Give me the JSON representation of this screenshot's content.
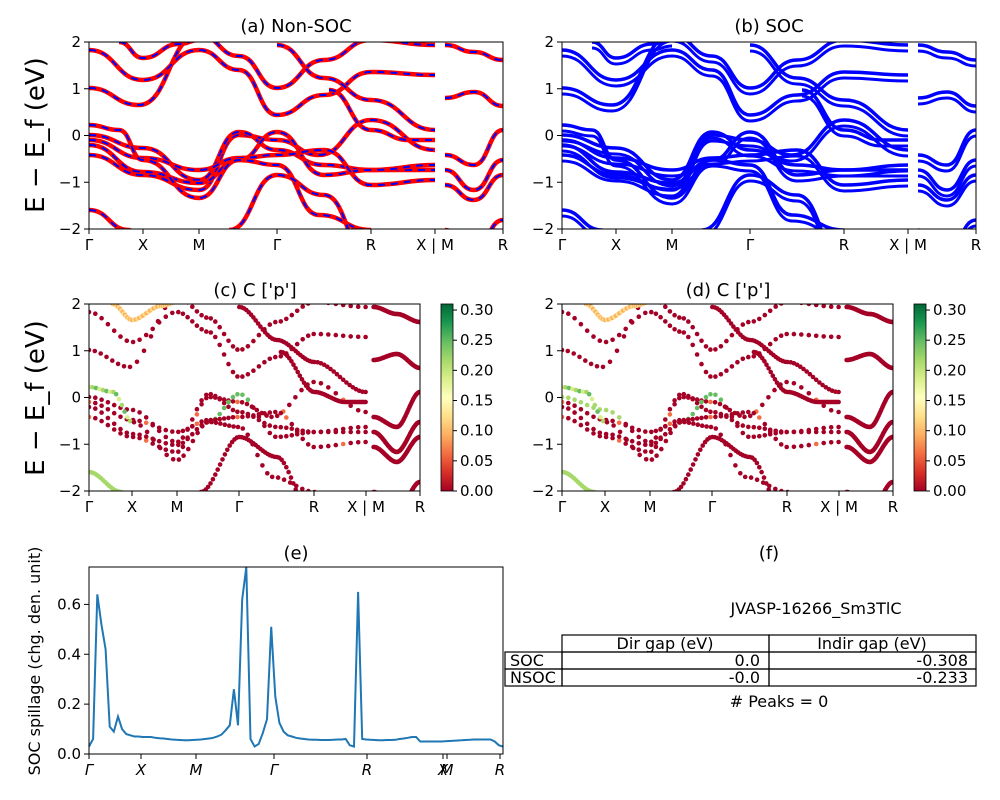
{
  "chart_data": [
    {
      "id": "a",
      "type": "line",
      "title": "(a) Non-SOC",
      "ylabel": "E − E_f (eV)",
      "ylim": [
        -2,
        2
      ],
      "yticks": [
        "2",
        "1",
        "0",
        "−1",
        "−2"
      ],
      "kpoint_labels": [
        "Γ",
        "X",
        "M",
        "Γ",
        "R",
        "X | M",
        "R"
      ],
      "series_colors": [
        "#ff0000",
        "#0000ff"
      ],
      "line_style": "red solid overlaid with blue dashes"
    },
    {
      "id": "b",
      "type": "line",
      "title": "(b) SOC",
      "ylim": [
        -2,
        2
      ],
      "yticks": [
        "2",
        "1",
        "0",
        "−1",
        "−2"
      ],
      "kpoint_labels": [
        "Γ",
        "X",
        "M",
        "Γ",
        "R",
        "X | M",
        "R"
      ],
      "series_colors": [
        "#0000ff"
      ]
    },
    {
      "id": "c",
      "type": "scatter",
      "title": "(c)  C ['p']",
      "ylabel": "E − E_f (eV)",
      "ylim": [
        -2,
        2
      ],
      "yticks": [
        "2",
        "1",
        "0",
        "−1",
        "−2"
      ],
      "kpoint_labels": [
        "Γ",
        "X",
        "M",
        "Γ",
        "R",
        "X | M",
        "R"
      ],
      "colorbar": {
        "ticks": [
          "0.30",
          "0.25",
          "0.20",
          "0.15",
          "0.10",
          "0.05",
          "0.00"
        ],
        "range": [
          0,
          0.31
        ],
        "colormap": "RdYlGn"
      }
    },
    {
      "id": "d",
      "type": "scatter",
      "title": "(d) C ['p']",
      "ylim": [
        -2,
        2
      ],
      "yticks": [
        "2",
        "1",
        "0",
        "−1",
        "−2"
      ],
      "kpoint_labels": [
        "Γ",
        "X",
        "M",
        "Γ",
        "R",
        "X | M",
        "R"
      ],
      "colorbar": {
        "ticks": [
          "0.30",
          "0.25",
          "0.20",
          "0.15",
          "0.10",
          "0.05",
          "0.00"
        ],
        "range": [
          0,
          0.31
        ],
        "colormap": "RdYlGn"
      }
    },
    {
      "id": "e",
      "type": "line",
      "title": "(e)",
      "ylabel": "SOC spillage (chg. den. unit)",
      "ylim": [
        0,
        0.75
      ],
      "yticks": [
        "0.0",
        "0.2",
        "0.4",
        "0.6"
      ],
      "kpoint_labels": [
        "Γ",
        "X",
        "M",
        "Γ",
        "R",
        "X",
        "M",
        "R"
      ],
      "series_colors": [
        "#1f77b4"
      ],
      "x": [
        0,
        1,
        2,
        3,
        4,
        5,
        6,
        7,
        8,
        9,
        10,
        11,
        12,
        13,
        14,
        15,
        16,
        17,
        18,
        19,
        20,
        21,
        22,
        23,
        24,
        25,
        26,
        27,
        28,
        29,
        30,
        31,
        32,
        33,
        34,
        35,
        36,
        37,
        38,
        39,
        40,
        41,
        42,
        43,
        44,
        45,
        46,
        47,
        48,
        49,
        50,
        51,
        52,
        53,
        54,
        55,
        56,
        57,
        58,
        59,
        60,
        61,
        62,
        63,
        64,
        65,
        66,
        67,
        68,
        69,
        70,
        71,
        72,
        73,
        74,
        75,
        76,
        77,
        78,
        79,
        80,
        81,
        82,
        83,
        84,
        85,
        86,
        87,
        88,
        89,
        90,
        91,
        92,
        93,
        94,
        95,
        96,
        97,
        98,
        99,
        100
      ],
      "values": [
        0.03,
        0.06,
        0.64,
        0.52,
        0.42,
        0.11,
        0.09,
        0.15,
        0.1,
        0.08,
        0.075,
        0.07,
        0.07,
        0.068,
        0.068,
        0.068,
        0.065,
        0.063,
        0.062,
        0.06,
        0.058,
        0.057,
        0.056,
        0.055,
        0.055,
        0.056,
        0.057,
        0.058,
        0.06,
        0.062,
        0.065,
        0.07,
        0.078,
        0.095,
        0.115,
        0.26,
        0.115,
        0.62,
        0.75,
        0.06,
        0.03,
        0.04,
        0.085,
        0.14,
        0.51,
        0.23,
        0.125,
        0.09,
        0.075,
        0.07,
        0.065,
        0.062,
        0.06,
        0.058,
        0.057,
        0.057,
        0.056,
        0.056,
        0.056,
        0.057,
        0.058,
        0.058,
        0.06,
        0.035,
        0.03,
        0.65,
        0.06,
        0.058,
        0.057,
        0.056,
        0.055,
        0.055,
        0.056,
        0.056,
        0.057,
        0.06,
        0.062,
        0.065,
        0.068,
        0.068,
        0.05,
        0.05,
        0.05,
        0.05,
        0.05,
        0.05,
        0.051,
        0.052,
        0.053,
        0.054,
        0.055,
        0.056,
        0.057,
        0.058,
        0.058,
        0.058,
        0.058,
        0.058,
        0.05,
        0.035,
        0.03
      ]
    }
  ],
  "panel_f": {
    "title": "(f)",
    "id_text": "JVASP-16266_Sm3TlC",
    "table": {
      "headers": [
        "Dir gap (eV)",
        "Indir gap (eV)"
      ],
      "rows": [
        {
          "label": "SOC",
          "dir": "0.0",
          "indir": "-0.308"
        },
        {
          "label": "NSOC",
          "dir": "-0.0",
          "indir": "-0.233"
        }
      ]
    },
    "peaks_text": "# Peaks = 0"
  }
}
